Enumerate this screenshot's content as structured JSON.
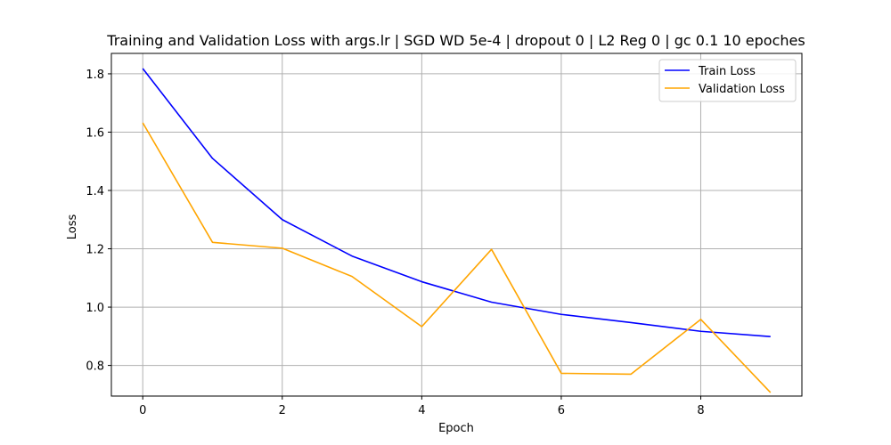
{
  "chart_data": {
    "type": "line",
    "title": "Training and Validation Loss with args.lr | SGD WD 5e-4 | dropout 0 | L2 Reg 0 | gc 0.1 10 epoches",
    "xlabel": "Epoch",
    "ylabel": "Loss",
    "x": [
      0,
      1,
      2,
      3,
      4,
      5,
      6,
      7,
      8,
      9
    ],
    "xticks": [
      0,
      2,
      4,
      6,
      8
    ],
    "yticks": [
      0.8,
      1.0,
      1.2,
      1.4,
      1.6,
      1.8
    ],
    "xlim": [
      -0.45,
      9.45
    ],
    "ylim": [
      0.695,
      1.87
    ],
    "grid": true,
    "legend_position": "top-right",
    "series": [
      {
        "name": "Train Loss",
        "color": "#0000ff",
        "values": [
          1.818,
          1.51,
          1.3,
          1.175,
          1.087,
          1.017,
          0.975,
          0.947,
          0.917,
          0.899
        ]
      },
      {
        "name": "Validation Loss",
        "color": "#ffa500",
        "values": [
          1.632,
          1.222,
          1.202,
          1.105,
          0.933,
          1.198,
          0.773,
          0.77,
          0.958,
          0.707
        ]
      }
    ]
  }
}
